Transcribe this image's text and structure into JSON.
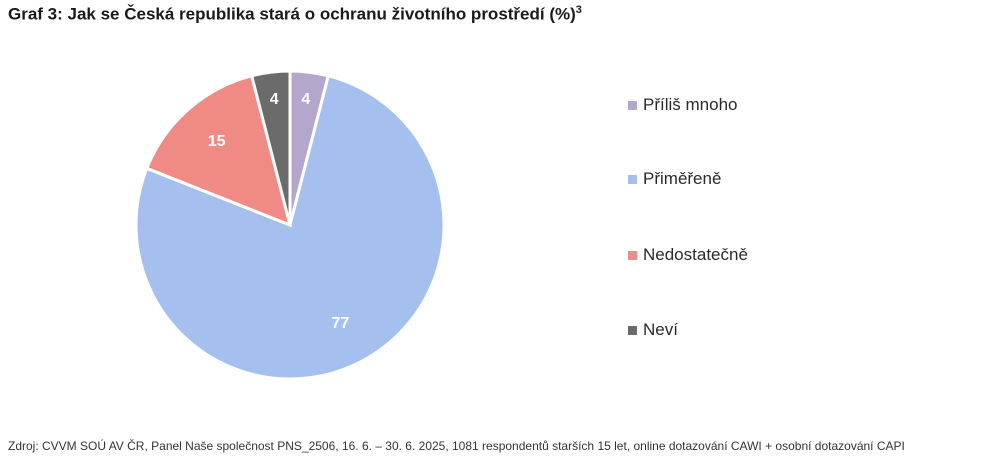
{
  "title": "Graf 3: Jak se Česká republika stará o ochranu životního prostředí (%)",
  "title_superscript": "3",
  "chart_data": {
    "type": "pie",
    "categories": [
      "Příliš mnoho",
      "Přiměřeně",
      "Nedostatečně",
      "Neví"
    ],
    "values": [
      4,
      77,
      15,
      4
    ],
    "colors": [
      "#b4a7cc",
      "#a5c0ee",
      "#f08a85",
      "#6b6b6b"
    ],
    "data_labels": [
      "4",
      "77",
      "15",
      "4"
    ],
    "legend_position": "right"
  },
  "legend": {
    "items": [
      {
        "label": "Příliš mnoho",
        "color": "#b4a7cc"
      },
      {
        "label": "Přiměřeně",
        "color": "#a5c0ee"
      },
      {
        "label": "Nedostatečně",
        "color": "#f08a85"
      },
      {
        "label": "Neví",
        "color": "#6b6b6b"
      }
    ]
  },
  "source": "Zdroj: CVVM SOÚ AV ČR, Panel Naše společnost PNS_2506, 16. 6. – 30. 6. 2025, 1081 respondentů starších 15 let, online dotazování CAWI + osobní dotazování CAPI"
}
